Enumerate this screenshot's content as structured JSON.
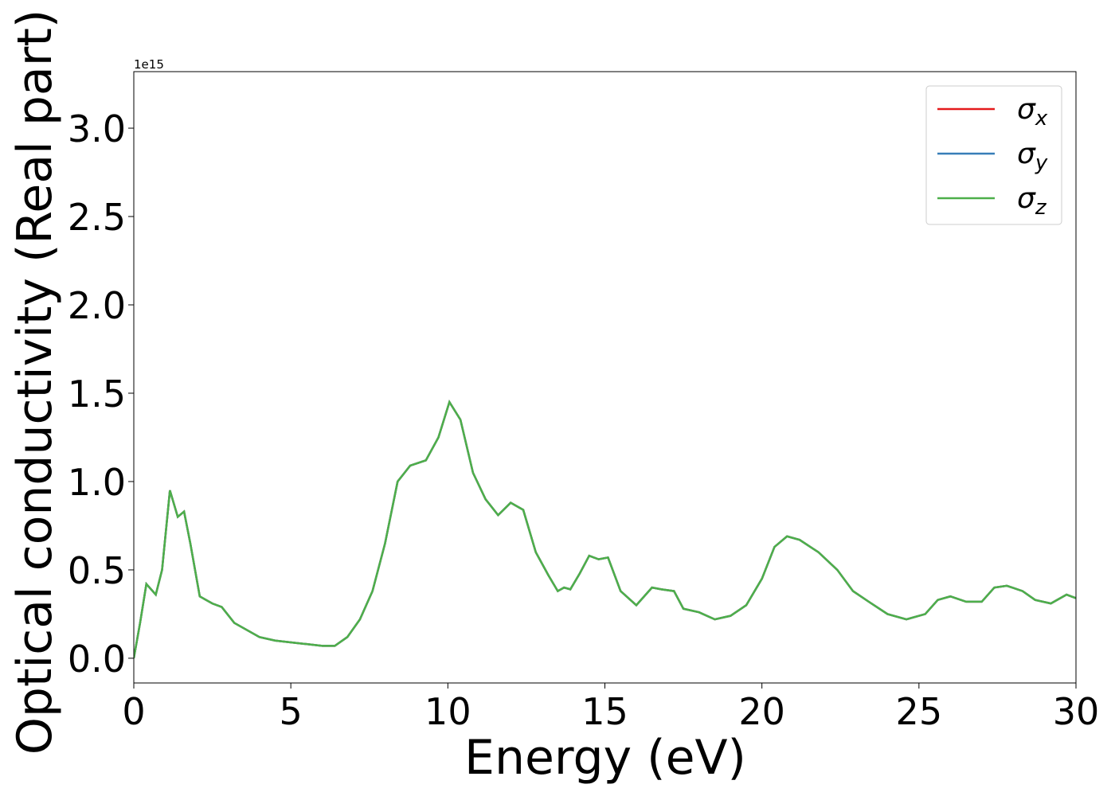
{
  "chart_data": {
    "type": "line",
    "xlabel": "Energy (eV)",
    "ylabel": "Optical conductivity (Real part)",
    "y_offset_label": "1e15",
    "x": [
      0,
      0.2,
      0.4,
      0.7,
      0.9,
      1.15,
      1.4,
      1.6,
      1.8,
      2.1,
      2.5,
      2.8,
      3.2,
      3.6,
      4.0,
      4.5,
      5.0,
      5.5,
      6.0,
      6.4,
      6.8,
      7.2,
      7.6,
      8.0,
      8.4,
      8.8,
      9.3,
      9.7,
      10.05,
      10.4,
      10.8,
      11.2,
      11.6,
      12.0,
      12.4,
      12.8,
      13.2,
      13.5,
      13.7,
      13.9,
      14.2,
      14.5,
      14.8,
      15.1,
      15.5,
      16.0,
      16.5,
      16.8,
      17.2,
      17.5,
      18.0,
      18.5,
      19.0,
      19.5,
      20.0,
      20.4,
      20.8,
      21.2,
      21.8,
      22.4,
      22.9,
      23.4,
      24.0,
      24.6,
      25.2,
      25.6,
      26.0,
      26.5,
      27.0,
      27.4,
      27.8,
      28.3,
      28.7,
      29.2,
      29.7,
      30.0
    ],
    "series": [
      {
        "name": "σx",
        "color": "#e41a1c",
        "values": [
          0,
          0.2,
          0.42,
          0.36,
          0.5,
          0.95,
          0.8,
          0.83,
          0.65,
          0.35,
          0.31,
          0.29,
          0.2,
          0.16,
          0.12,
          0.1,
          0.09,
          0.08,
          0.07,
          0.07,
          0.12,
          0.22,
          0.38,
          0.65,
          1.0,
          1.09,
          1.12,
          1.25,
          1.45,
          1.35,
          1.05,
          0.9,
          0.81,
          0.88,
          0.84,
          0.6,
          0.47,
          0.38,
          0.4,
          0.39,
          0.48,
          0.58,
          0.56,
          0.57,
          0.38,
          0.3,
          0.4,
          0.39,
          0.38,
          0.28,
          0.26,
          0.22,
          0.24,
          0.3,
          0.45,
          0.63,
          0.69,
          0.67,
          0.6,
          0.5,
          0.38,
          0.32,
          0.25,
          0.22,
          0.25,
          0.33,
          0.35,
          0.32,
          0.32,
          0.4,
          0.41,
          0.38,
          0.33,
          0.31,
          0.36,
          0.34
        ]
      },
      {
        "name": "σy",
        "color": "#377eb8",
        "values": [
          0,
          0.2,
          0.42,
          0.36,
          0.5,
          0.95,
          0.8,
          0.83,
          0.65,
          0.35,
          0.31,
          0.29,
          0.2,
          0.16,
          0.12,
          0.1,
          0.09,
          0.08,
          0.07,
          0.07,
          0.12,
          0.22,
          0.38,
          0.65,
          1.0,
          1.09,
          1.12,
          1.25,
          1.45,
          1.35,
          1.05,
          0.9,
          0.81,
          0.88,
          0.84,
          0.6,
          0.47,
          0.38,
          0.4,
          0.39,
          0.48,
          0.58,
          0.56,
          0.57,
          0.38,
          0.3,
          0.4,
          0.39,
          0.38,
          0.28,
          0.26,
          0.22,
          0.24,
          0.3,
          0.45,
          0.63,
          0.69,
          0.67,
          0.6,
          0.5,
          0.38,
          0.32,
          0.25,
          0.22,
          0.25,
          0.33,
          0.35,
          0.32,
          0.32,
          0.4,
          0.41,
          0.38,
          0.33,
          0.31,
          0.36,
          0.34
        ]
      },
      {
        "name": "σz",
        "color": "#4daf4a",
        "values": [
          0,
          0.2,
          0.42,
          0.36,
          0.5,
          0.95,
          0.8,
          0.83,
          0.65,
          0.35,
          0.31,
          0.29,
          0.2,
          0.16,
          0.12,
          0.1,
          0.09,
          0.08,
          0.07,
          0.07,
          0.12,
          0.22,
          0.38,
          0.65,
          1.0,
          1.09,
          1.12,
          1.25,
          1.45,
          1.35,
          1.05,
          0.9,
          0.81,
          0.88,
          0.84,
          0.6,
          0.47,
          0.38,
          0.4,
          0.39,
          0.48,
          0.58,
          0.56,
          0.57,
          0.38,
          0.3,
          0.4,
          0.39,
          0.38,
          0.28,
          0.26,
          0.22,
          0.24,
          0.3,
          0.45,
          0.63,
          0.69,
          0.67,
          0.6,
          0.5,
          0.38,
          0.32,
          0.25,
          0.22,
          0.25,
          0.33,
          0.35,
          0.32,
          0.32,
          0.4,
          0.41,
          0.38,
          0.33,
          0.31,
          0.36,
          0.34
        ]
      }
    ],
    "xlim": [
      0,
      30
    ],
    "xticks": [
      0,
      5,
      10,
      15,
      20,
      25,
      30
    ],
    "ylim": [
      -0.14,
      3.32
    ],
    "yticks": [
      {
        "value": 0,
        "label": "0.0"
      },
      0.5,
      {
        "value": 1,
        "label": "1.0"
      },
      1.5,
      {
        "value": 2,
        "label": "2.0"
      },
      2.5,
      {
        "value": 3,
        "label": "3.0"
      }
    ],
    "grid": false,
    "legend": "upper right"
  }
}
